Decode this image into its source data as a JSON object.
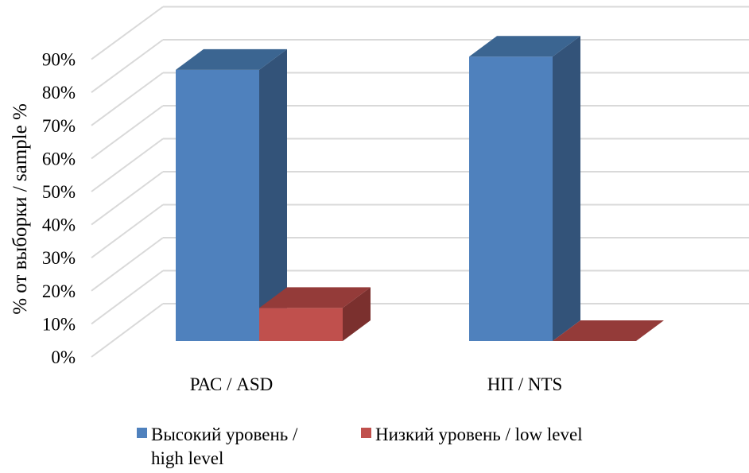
{
  "chart_data": {
    "type": "bar",
    "title": "",
    "xlabel": "",
    "ylabel": "% от выборки / sample %",
    "ylim": [
      0,
      90
    ],
    "yticks": [
      "0%",
      "10%",
      "20%",
      "30%",
      "40%",
      "50%",
      "60%",
      "70%",
      "80%",
      "90%"
    ],
    "categories": [
      "РАС / ASD",
      "НП / NTS"
    ],
    "series": [
      {
        "name": "Высокий уровень / high level",
        "legend_lines": [
          "Высокий уровень /",
          "high level"
        ],
        "values": [
          82,
          86
        ],
        "color": "#4f81bd",
        "top": "#3b6591",
        "side": "#335379"
      },
      {
        "name": "Низкий уровень / low level",
        "legend_lines": [
          "Низкий уровень / low level"
        ],
        "values": [
          10,
          0
        ],
        "color": "#c0504d",
        "top": "#943b39",
        "side": "#7b302e"
      }
    ],
    "grid": true,
    "legend": "bottom"
  }
}
